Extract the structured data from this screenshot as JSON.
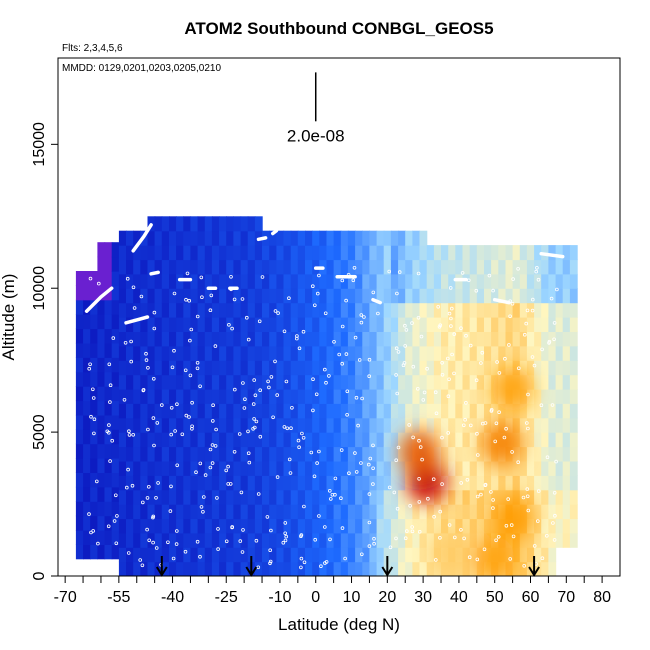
{
  "chart_data": {
    "type": "heatmap",
    "title": "ATOM2 Southbound CONBGL_GEOS5",
    "subtitle_flights": "Flts: 2,3,4,5,6",
    "subtitle_dates": "MMDD: 0129,0201,0203,0205,0210",
    "xlabel": "Latitude (deg N)",
    "ylabel": "Altitude (m)",
    "xlim": [
      -72,
      85
    ],
    "ylim": [
      0,
      18000
    ],
    "x_ticks": [
      -70,
      -55,
      -40,
      -25,
      -10,
      0,
      10,
      20,
      30,
      40,
      50,
      60,
      70,
      80
    ],
    "x_minor_ticks": [
      -65,
      -60,
      -50,
      -45,
      -35,
      -30,
      -20,
      -15,
      -5,
      5,
      15,
      25,
      35,
      45,
      55,
      65,
      75
    ],
    "y_ticks": [
      0,
      5000,
      10000,
      15000
    ],
    "scale_bar": {
      "label": "2.0e-08",
      "x": 0,
      "y_bottom": 15800,
      "y_top": 17500
    },
    "arrow_markers_lat": [
      -43,
      -18,
      20,
      61
    ],
    "grid": false,
    "legend": "none",
    "colors": {
      "low": "#0a0fb8",
      "mid_low": "#1e6bff",
      "mid": "#9fd8ff",
      "mid_high": "#fff6c0",
      "high": "#ff9b00",
      "peak": "#c80000",
      "edge_purple": "#6a20d0"
    },
    "color_bands_by_latitude": [
      {
        "lat": -65,
        "level": 0.06
      },
      {
        "lat": -50,
        "level": 0.08
      },
      {
        "lat": -35,
        "level": 0.1
      },
      {
        "lat": -20,
        "level": 0.12
      },
      {
        "lat": -10,
        "level": 0.16
      },
      {
        "lat": 0,
        "level": 0.22
      },
      {
        "lat": 10,
        "level": 0.3
      },
      {
        "lat": 18,
        "level": 0.42
      },
      {
        "lat": 25,
        "level": 0.55
      },
      {
        "lat": 35,
        "level": 0.62
      },
      {
        "lat": 45,
        "level": 0.64
      },
      {
        "lat": 55,
        "level": 0.68
      },
      {
        "lat": 65,
        "level": 0.55
      }
    ],
    "hotspots": [
      {
        "lat": 31,
        "alt": 3300,
        "level": 1.0
      },
      {
        "lat": 29,
        "alt": 4300,
        "level": 0.9
      },
      {
        "lat": 52,
        "alt": 4600,
        "level": 0.85
      },
      {
        "lat": 55,
        "alt": 6500,
        "level": 0.8
      },
      {
        "lat": 55,
        "alt": 2000,
        "level": 0.82
      },
      {
        "lat": 50,
        "alt": 600,
        "level": 0.8
      },
      {
        "lat": 38,
        "alt": 800,
        "level": 0.7
      }
    ],
    "flight_tracks": [
      {
        "lat": [
          -64,
          -60,
          -57
        ],
        "alt": [
          9200,
          9700,
          10000
        ]
      },
      {
        "lat": [
          -53,
          -50,
          -47
        ],
        "alt": [
          8800,
          8900,
          9000
        ]
      },
      {
        "lat": [
          -51,
          -48,
          -46
        ],
        "alt": [
          11300,
          11800,
          12200
        ]
      },
      {
        "lat": [
          -46,
          -44
        ],
        "alt": [
          10500,
          10550
        ]
      },
      {
        "lat": [
          -38,
          -35
        ],
        "alt": [
          10300,
          10300
        ]
      },
      {
        "lat": [
          -30,
          -28
        ],
        "alt": [
          10000,
          10000
        ]
      },
      {
        "lat": [
          -24,
          -22
        ],
        "alt": [
          10000,
          10000
        ]
      },
      {
        "lat": [
          -16,
          -14
        ],
        "alt": [
          11700,
          11750
        ]
      },
      {
        "lat": [
          -12,
          -11
        ],
        "alt": [
          11900,
          12000
        ]
      },
      {
        "lat": [
          0,
          2
        ],
        "alt": [
          10700,
          10700
        ]
      },
      {
        "lat": [
          6,
          11
        ],
        "alt": [
          10400,
          10400
        ]
      },
      {
        "lat": [
          16,
          18
        ],
        "alt": [
          9600,
          9500
        ]
      },
      {
        "lat": [
          39,
          42
        ],
        "alt": [
          10300,
          10300
        ]
      },
      {
        "lat": [
          50,
          54
        ],
        "alt": [
          9600,
          9500
        ]
      },
      {
        "lat": [
          63,
          69
        ],
        "alt": [
          11200,
          11100
        ]
      }
    ],
    "sample_profiles_lat": [
      -62,
      -57,
      -52,
      -48,
      -44,
      -40,
      -36,
      -32,
      -28,
      -24,
      -20,
      -16,
      -12,
      -8,
      -4,
      0,
      4,
      8,
      12,
      16,
      22,
      26,
      30,
      34,
      38,
      42,
      46,
      50,
      54,
      58,
      62,
      66
    ]
  }
}
